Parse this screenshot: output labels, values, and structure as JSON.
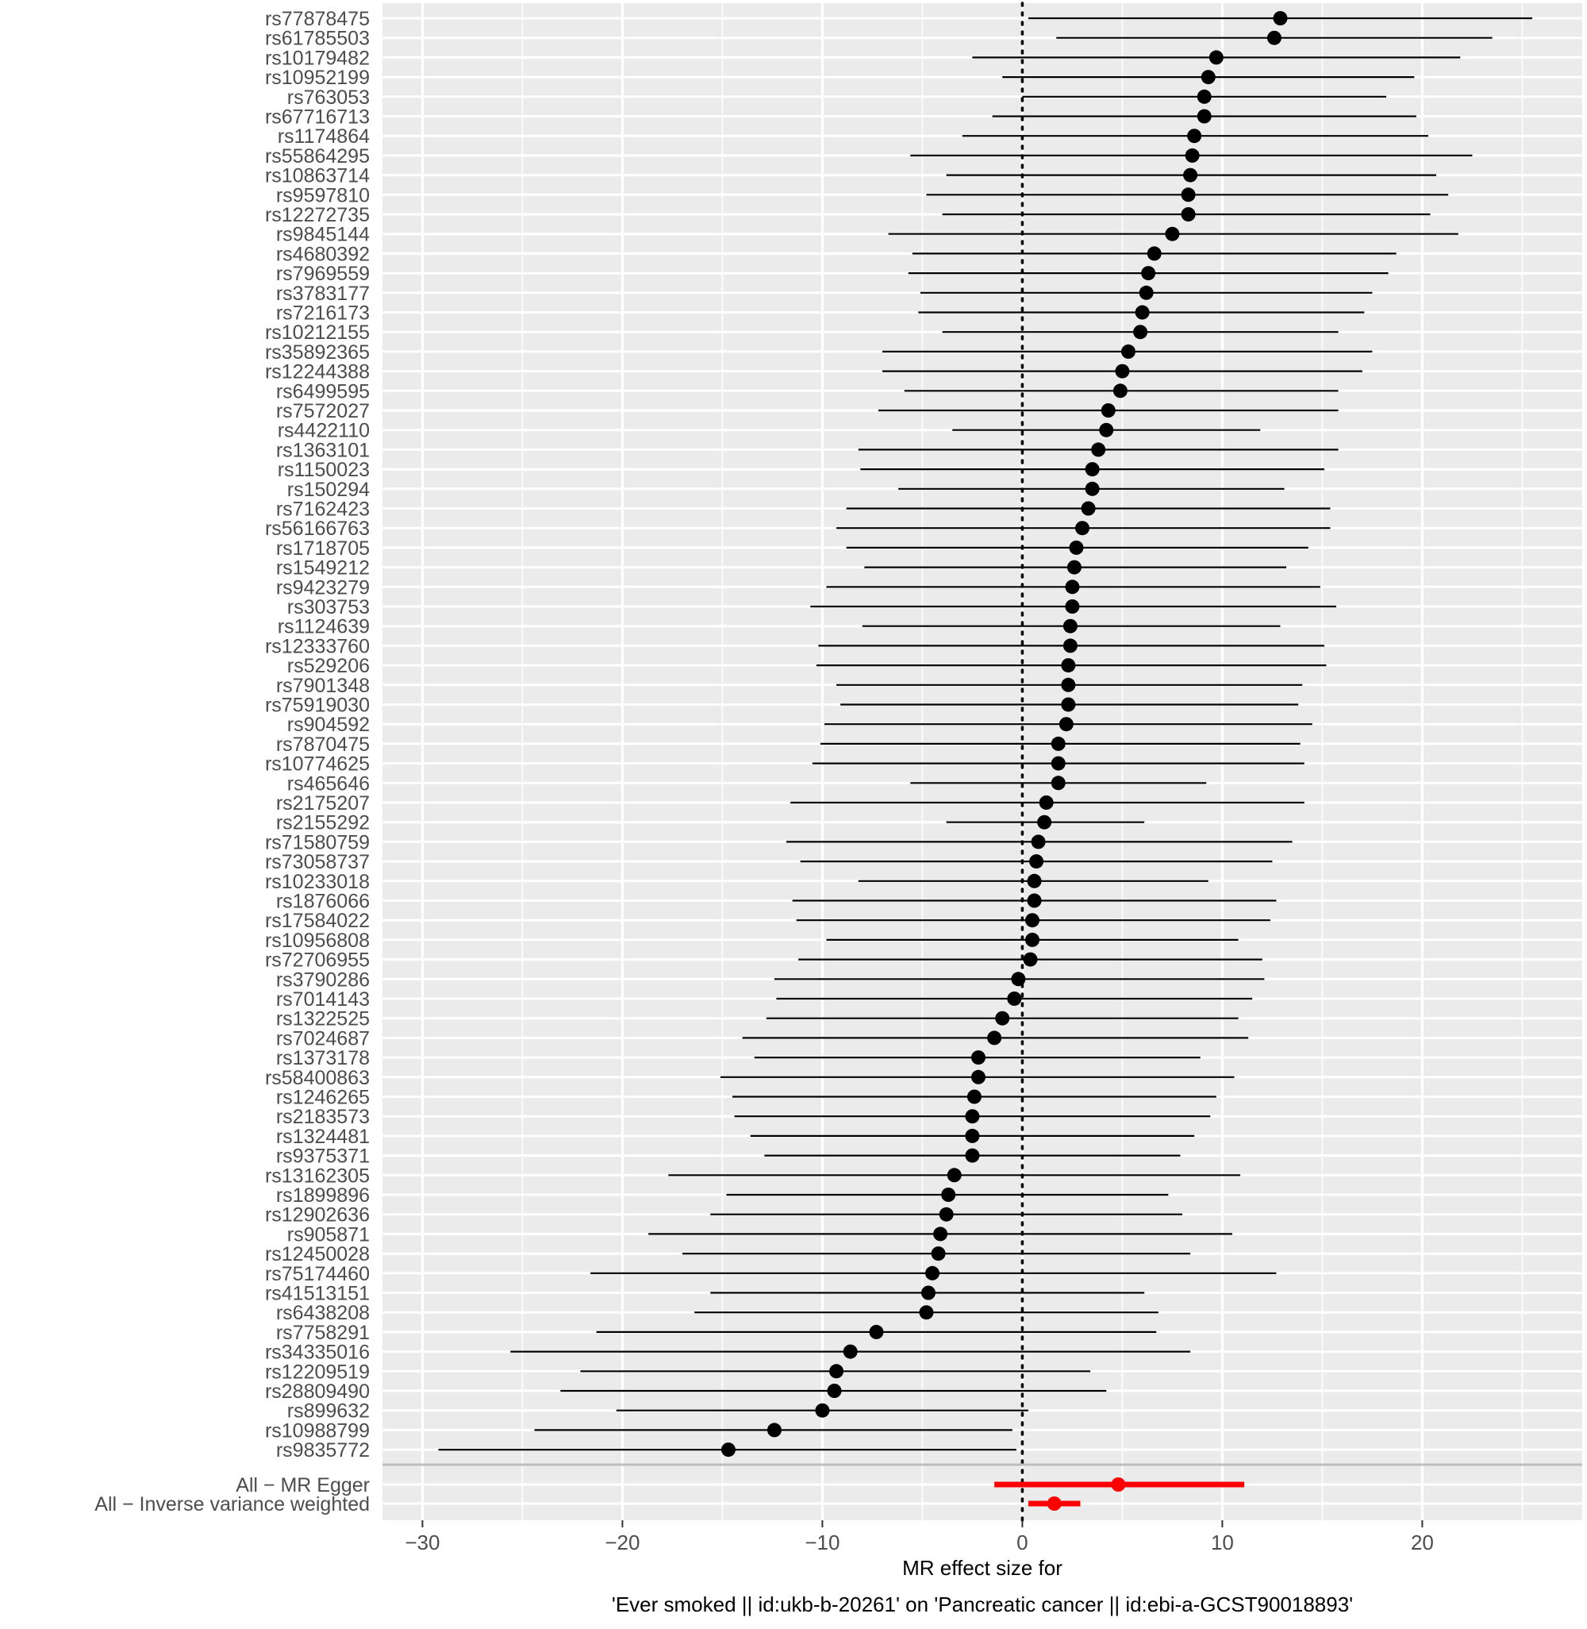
{
  "chart_data": {
    "type": "forest",
    "xlabel_line1": "MR effect size for",
    "xlabel_line2": "'Ever smoked || id:ukb-b-20261' on 'Pancreatic cancer || id:ebi-a-GCST90018893'",
    "xlim": [
      -32,
      28
    ],
    "xticks": [
      -30,
      -20,
      -10,
      0,
      10,
      20
    ],
    "xtick_labels": [
      "−30",
      "−20",
      "−10",
      "0",
      "10",
      "20"
    ],
    "reference_line": 0,
    "grid": true,
    "colors": {
      "panel": "#ebebeb",
      "grid": "#ffffff",
      "snp": "#000000",
      "summary": "#ff0000",
      "separator": "#bebebe"
    },
    "snps": [
      {
        "name": "rs77878475",
        "b": 12.9,
        "lo": 0.3,
        "hi": 25.5
      },
      {
        "name": "rs61785503",
        "b": 12.6,
        "lo": 1.7,
        "hi": 23.5
      },
      {
        "name": "rs10179482",
        "b": 9.7,
        "lo": -2.5,
        "hi": 21.9
      },
      {
        "name": "rs10952199",
        "b": 9.3,
        "lo": -1.0,
        "hi": 19.6
      },
      {
        "name": "rs763053",
        "b": 9.1,
        "lo": 0.0,
        "hi": 18.2
      },
      {
        "name": "rs67716713",
        "b": 9.1,
        "lo": -1.5,
        "hi": 19.7
      },
      {
        "name": "rs1174864",
        "b": 8.6,
        "lo": -3.0,
        "hi": 20.3
      },
      {
        "name": "rs55864295",
        "b": 8.5,
        "lo": -5.6,
        "hi": 22.5
      },
      {
        "name": "rs10863714",
        "b": 8.4,
        "lo": -3.8,
        "hi": 20.7
      },
      {
        "name": "rs9597810",
        "b": 8.3,
        "lo": -4.8,
        "hi": 21.3
      },
      {
        "name": "rs12272735",
        "b": 8.3,
        "lo": -4.0,
        "hi": 20.4
      },
      {
        "name": "rs9845144",
        "b": 7.5,
        "lo": -6.7,
        "hi": 21.8
      },
      {
        "name": "rs4680392",
        "b": 6.6,
        "lo": -5.5,
        "hi": 18.7
      },
      {
        "name": "rs7969559",
        "b": 6.3,
        "lo": -5.7,
        "hi": 18.3
      },
      {
        "name": "rs3783177",
        "b": 6.2,
        "lo": -5.1,
        "hi": 17.5
      },
      {
        "name": "rs7216173",
        "b": 6.0,
        "lo": -5.2,
        "hi": 17.1
      },
      {
        "name": "rs10212155",
        "b": 5.9,
        "lo": -4.0,
        "hi": 15.8
      },
      {
        "name": "rs35892365",
        "b": 5.3,
        "lo": -7.0,
        "hi": 17.5
      },
      {
        "name": "rs12244388",
        "b": 5.0,
        "lo": -7.0,
        "hi": 17.0
      },
      {
        "name": "rs6499595",
        "b": 4.9,
        "lo": -5.9,
        "hi": 15.8
      },
      {
        "name": "rs7572027",
        "b": 4.3,
        "lo": -7.2,
        "hi": 15.8
      },
      {
        "name": "rs4422110",
        "b": 4.2,
        "lo": -3.5,
        "hi": 11.9
      },
      {
        "name": "rs1363101",
        "b": 3.8,
        "lo": -8.2,
        "hi": 15.8
      },
      {
        "name": "rs1150023",
        "b": 3.5,
        "lo": -8.1,
        "hi": 15.1
      },
      {
        "name": "rs150294",
        "b": 3.5,
        "lo": -6.2,
        "hi": 13.1
      },
      {
        "name": "rs7162423",
        "b": 3.3,
        "lo": -8.8,
        "hi": 15.4
      },
      {
        "name": "rs56166763",
        "b": 3.0,
        "lo": -9.3,
        "hi": 15.4
      },
      {
        "name": "rs1718705",
        "b": 2.7,
        "lo": -8.8,
        "hi": 14.3
      },
      {
        "name": "rs1549212",
        "b": 2.6,
        "lo": -7.9,
        "hi": 13.2
      },
      {
        "name": "rs9423279",
        "b": 2.5,
        "lo": -9.8,
        "hi": 14.9
      },
      {
        "name": "rs303753",
        "b": 2.5,
        "lo": -10.6,
        "hi": 15.7
      },
      {
        "name": "rs1124639",
        "b": 2.4,
        "lo": -8.0,
        "hi": 12.9
      },
      {
        "name": "rs12333760",
        "b": 2.4,
        "lo": -10.2,
        "hi": 15.1
      },
      {
        "name": "rs529206",
        "b": 2.3,
        "lo": -10.3,
        "hi": 15.2
      },
      {
        "name": "rs7901348",
        "b": 2.3,
        "lo": -9.3,
        "hi": 14.0
      },
      {
        "name": "rs75919030",
        "b": 2.3,
        "lo": -9.1,
        "hi": 13.8
      },
      {
        "name": "rs904592",
        "b": 2.2,
        "lo": -9.9,
        "hi": 14.5
      },
      {
        "name": "rs7870475",
        "b": 1.8,
        "lo": -10.1,
        "hi": 13.9
      },
      {
        "name": "rs10774625",
        "b": 1.8,
        "lo": -10.5,
        "hi": 14.1
      },
      {
        "name": "rs465646",
        "b": 1.8,
        "lo": -5.6,
        "hi": 9.2
      },
      {
        "name": "rs2175207",
        "b": 1.2,
        "lo": -11.6,
        "hi": 14.1
      },
      {
        "name": "rs2155292",
        "b": 1.1,
        "lo": -3.8,
        "hi": 6.1
      },
      {
        "name": "rs71580759",
        "b": 0.8,
        "lo": -11.8,
        "hi": 13.5
      },
      {
        "name": "rs73058737",
        "b": 0.7,
        "lo": -11.1,
        "hi": 12.5
      },
      {
        "name": "rs10233018",
        "b": 0.6,
        "lo": -8.2,
        "hi": 9.3
      },
      {
        "name": "rs1876066",
        "b": 0.6,
        "lo": -11.5,
        "hi": 12.7
      },
      {
        "name": "rs17584022",
        "b": 0.5,
        "lo": -11.3,
        "hi": 12.4
      },
      {
        "name": "rs10956808",
        "b": 0.5,
        "lo": -9.8,
        "hi": 10.8
      },
      {
        "name": "rs72706955",
        "b": 0.4,
        "lo": -11.2,
        "hi": 12.0
      },
      {
        "name": "rs3790286",
        "b": -0.2,
        "lo": -12.4,
        "hi": 12.1
      },
      {
        "name": "rs7014143",
        "b": -0.4,
        "lo": -12.3,
        "hi": 11.5
      },
      {
        "name": "rs1322525",
        "b": -1.0,
        "lo": -12.8,
        "hi": 10.8
      },
      {
        "name": "rs7024687",
        "b": -1.4,
        "lo": -14.0,
        "hi": 11.3
      },
      {
        "name": "rs1373178",
        "b": -2.2,
        "lo": -13.4,
        "hi": 8.9
      },
      {
        "name": "rs58400863",
        "b": -2.2,
        "lo": -15.1,
        "hi": 10.6
      },
      {
        "name": "rs1246265",
        "b": -2.4,
        "lo": -14.5,
        "hi": 9.7
      },
      {
        "name": "rs2183573",
        "b": -2.5,
        "lo": -14.4,
        "hi": 9.4
      },
      {
        "name": "rs1324481",
        "b": -2.5,
        "lo": -13.6,
        "hi": 8.6
      },
      {
        "name": "rs9375371",
        "b": -2.5,
        "lo": -12.9,
        "hi": 7.9
      },
      {
        "name": "rs13162305",
        "b": -3.4,
        "lo": -17.7,
        "hi": 10.9
      },
      {
        "name": "rs1899896",
        "b": -3.7,
        "lo": -14.8,
        "hi": 7.3
      },
      {
        "name": "rs12902636",
        "b": -3.8,
        "lo": -15.6,
        "hi": 8.0
      },
      {
        "name": "rs905871",
        "b": -4.1,
        "lo": -18.7,
        "hi": 10.5
      },
      {
        "name": "rs12450028",
        "b": -4.2,
        "lo": -17.0,
        "hi": 8.4
      },
      {
        "name": "rs75174460",
        "b": -4.5,
        "lo": -21.6,
        "hi": 12.7
      },
      {
        "name": "rs41513151",
        "b": -4.7,
        "lo": -15.6,
        "hi": 6.1
      },
      {
        "name": "rs6438208",
        "b": -4.8,
        "lo": -16.4,
        "hi": 6.8
      },
      {
        "name": "rs7758291",
        "b": -7.3,
        "lo": -21.3,
        "hi": 6.7
      },
      {
        "name": "rs34335016",
        "b": -8.6,
        "lo": -25.6,
        "hi": 8.4
      },
      {
        "name": "rs12209519",
        "b": -9.3,
        "lo": -22.1,
        "hi": 3.4
      },
      {
        "name": "rs28809490",
        "b": -9.4,
        "lo": -23.1,
        "hi": 4.2
      },
      {
        "name": "rs899632",
        "b": -10.0,
        "lo": -20.3,
        "hi": 0.3
      },
      {
        "name": "rs10988799",
        "b": -12.4,
        "lo": -24.4,
        "hi": -0.5
      },
      {
        "name": "rs9835772",
        "b": -14.7,
        "lo": -29.2,
        "hi": -0.3
      }
    ],
    "summary": [
      {
        "name": "All − MR Egger",
        "b": 4.8,
        "lo": -1.4,
        "hi": 11.1
      },
      {
        "name": "All − Inverse variance weighted",
        "b": 1.6,
        "lo": 0.3,
        "hi": 2.9
      }
    ]
  }
}
